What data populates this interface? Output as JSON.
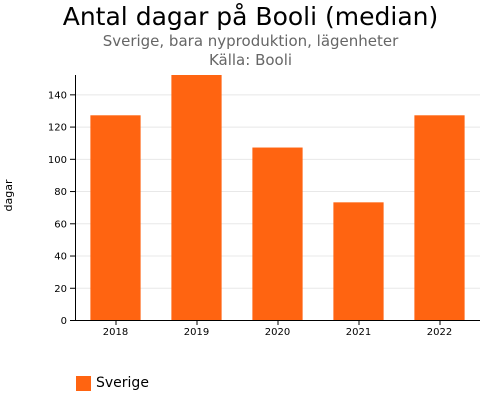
{
  "colors": {
    "bar": "#ff6411",
    "grid": "#e8e8e8",
    "axis": "#000000"
  },
  "chart_data": {
    "type": "bar",
    "title": "Antal dagar på Booli (median)",
    "subtitle": "Sverige, bara nyproduktion, lägenheter",
    "source": "Källa: Booli",
    "xlabel": "",
    "ylabel": "dagar",
    "categories": [
      "2018",
      "2019",
      "2020",
      "2021",
      "2022"
    ],
    "series": [
      {
        "name": "Sverige",
        "values": [
          127,
          152,
          107,
          73,
          127
        ]
      }
    ],
    "ylim": [
      0,
      152
    ],
    "yticks": [
      0,
      20,
      40,
      60,
      80,
      100,
      120,
      140
    ],
    "grid": true,
    "legend": "bottom-left"
  }
}
